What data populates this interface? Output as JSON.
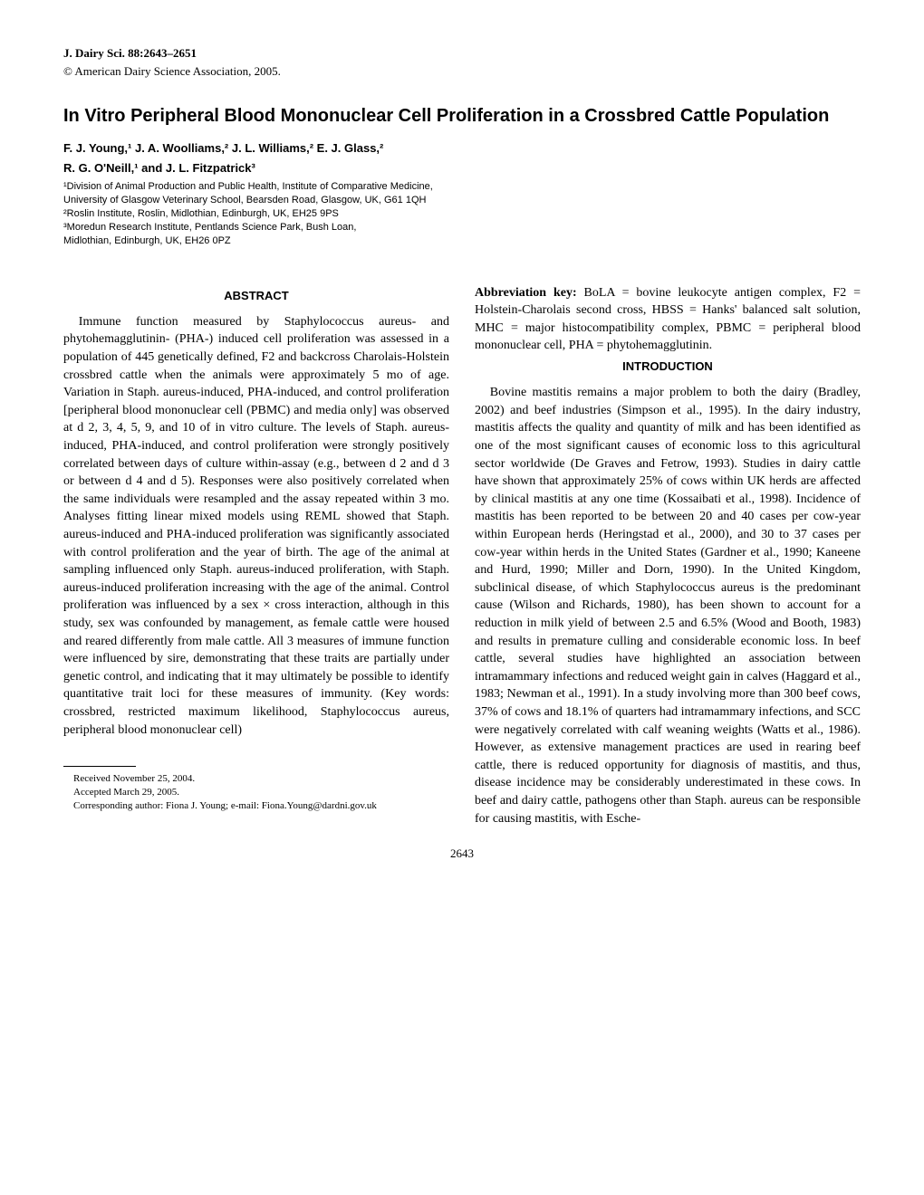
{
  "header": {
    "journal": "J. Dairy Sci. 88:2643–2651",
    "copyright": "© American Dairy Science Association, 2005."
  },
  "title": "In Vitro Peripheral Blood Mononuclear Cell Proliferation in a Crossbred Cattle Population",
  "authors_line1": "F. J. Young,¹ J. A. Woolliams,² J. L. Williams,² E. J. Glass,²",
  "authors_line2": "R. G. O'Neill,¹ and J. L. Fitzpatrick³",
  "affiliations": {
    "a1": "¹Division of Animal Production and Public Health, Institute of Comparative Medicine,",
    "a1b": "University of Glasgow Veterinary School, Bearsden Road, Glasgow, UK, G61 1QH",
    "a2": "²Roslin Institute, Roslin, Midlothian, Edinburgh, UK, EH25 9PS",
    "a3": "³Moredun Research Institute, Pentlands Science Park, Bush Loan,",
    "a3b": "Midlothian, Edinburgh, UK, EH26 0PZ"
  },
  "abstract_heading": "ABSTRACT",
  "abstract_body": "Immune function measured by Staphylococcus aureus- and phytohemagglutinin- (PHA-) induced cell proliferation was assessed in a population of 445 genetically defined, F2 and backcross Charolais-Holstein crossbred cattle when the animals were approximately 5 mo of age. Variation in Staph. aureus-induced, PHA-induced, and control proliferation [peripheral blood mononuclear cell (PBMC) and media only] was observed at d 2, 3, 4, 5, 9, and 10 of in vitro culture. The levels of Staph. aureus-induced, PHA-induced, and control proliferation were strongly positively correlated between days of culture within-assay (e.g., between d 2 and d 3 or between d 4 and d 5). Responses were also positively correlated when the same individuals were resampled and the assay repeated within 3 mo. Analyses fitting linear mixed models using REML showed that Staph. aureus-induced and PHA-induced proliferation was significantly associated with control proliferation and the year of birth. The age of the animal at sampling influenced only Staph. aureus-induced proliferation, with Staph. aureus-induced proliferation increasing with the age of the animal. Control proliferation was influenced by a sex × cross interaction, although in this study, sex was confounded by management, as female cattle were housed and reared differently from male cattle. All 3 measures of immune function were influenced by sire, demonstrating that these traits are partially under genetic control, and indicating that it may ultimately be possible to identify quantitative trait loci for these measures of immunity. (Key words: crossbred, restricted maximum likelihood, Staphylococcus aureus, peripheral blood mononuclear cell)",
  "abbrev_key_label": "Abbreviation key:",
  "abbrev_key": " BoLA = bovine leukocyte antigen complex, F2 = Holstein-Charolais second cross, HBSS = Hanks' balanced salt solution, MHC = major histocompatibility complex, PBMC = peripheral blood mononuclear cell, PHA = phytohemagglutinin.",
  "intro_heading": "INTRODUCTION",
  "intro_body": "Bovine mastitis remains a major problem to both the dairy (Bradley, 2002) and beef industries (Simpson et al., 1995). In the dairy industry, mastitis affects the quality and quantity of milk and has been identified as one of the most significant causes of economic loss to this agricultural sector worldwide (De Graves and Fetrow, 1993). Studies in dairy cattle have shown that approximately 25% of cows within UK herds are affected by clinical mastitis at any one time (Kossaibati et al., 1998). Incidence of mastitis has been reported to be between 20 and 40 cases per cow-year within European herds (Heringstad et al., 2000), and 30 to 37 cases per cow-year within herds in the United States (Gardner et al., 1990; Kaneene and Hurd, 1990; Miller and Dorn, 1990). In the United Kingdom, subclinical disease, of which Staphylococcus aureus is the predominant cause (Wilson and Richards, 1980), has been shown to account for a reduction in milk yield of between 2.5 and 6.5% (Wood and Booth, 1983) and results in premature culling and considerable economic loss. In beef cattle, several studies have highlighted an association between intramammary infections and reduced weight gain in calves (Haggard et al., 1983; Newman et al., 1991). In a study involving more than 300 beef cows, 37% of cows and 18.1% of quarters had intramammary infections, and SCC were negatively correlated with calf weaning weights (Watts et al., 1986). However, as extensive management practices are used in rearing beef cattle, there is reduced opportunity for diagnosis of mastitis, and thus, disease incidence may be considerably underestimated in these cows. In beef and dairy cattle, pathogens other than Staph. aureus can be responsible for causing mastitis, with Esche-",
  "footnotes": {
    "received": "Received November 25, 2004.",
    "accepted": "Accepted March 29, 2005.",
    "corresponding": "Corresponding author: Fiona J. Young; e-mail: Fiona.Young@dardni.gov.uk"
  },
  "page_number": "2643"
}
